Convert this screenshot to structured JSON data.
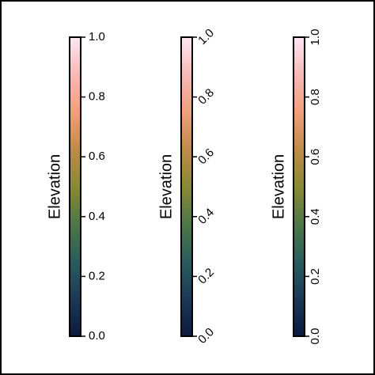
{
  "chart_data": [
    {
      "type": "colorbar",
      "label": "Elevation",
      "ylim": [
        0,
        1
      ],
      "tick_rotation": 0,
      "yticks": [
        {
          "value": 0,
          "label": "0.0"
        },
        {
          "value": 0.2,
          "label": "0.2"
        },
        {
          "value": 0.4,
          "label": "0.4"
        },
        {
          "value": 0.6,
          "label": "0.6"
        },
        {
          "value": 0.8,
          "label": "0.8"
        },
        {
          "value": 1,
          "label": "1.0"
        }
      ],
      "colormap": [
        "#0b1a40",
        "#1b3957",
        "#2a5c5e",
        "#4d7846",
        "#8a8934",
        "#c08b4a",
        "#f19f7c",
        "#f8b9b6",
        "#fde8f6"
      ]
    },
    {
      "type": "colorbar",
      "label": "Elevation",
      "ylim": [
        0,
        1
      ],
      "tick_rotation": 45,
      "yticks": [
        {
          "value": 0,
          "label": "0.0"
        },
        {
          "value": 0.2,
          "label": "0.2"
        },
        {
          "value": 0.4,
          "label": "0.4"
        },
        {
          "value": 0.6,
          "label": "0.6"
        },
        {
          "value": 0.8,
          "label": "0.8"
        },
        {
          "value": 1,
          "label": "1.0"
        }
      ],
      "colormap": [
        "#0b1a40",
        "#1b3957",
        "#2a5c5e",
        "#4d7846",
        "#8a8934",
        "#c08b4a",
        "#f19f7c",
        "#f8b9b6",
        "#fde8f6"
      ]
    },
    {
      "type": "colorbar",
      "label": "Elevation",
      "ylim": [
        0,
        1
      ],
      "tick_rotation": 90,
      "yticks": [
        {
          "value": 0,
          "label": "0.0"
        },
        {
          "value": 0.2,
          "label": "0.2"
        },
        {
          "value": 0.4,
          "label": "0.4"
        },
        {
          "value": 0.6,
          "label": "0.6"
        },
        {
          "value": 0.8,
          "label": "0.8"
        },
        {
          "value": 1,
          "label": "1.0"
        }
      ],
      "colormap": [
        "#0b1a40",
        "#1b3957",
        "#2a5c5e",
        "#4d7846",
        "#8a8934",
        "#c08b4a",
        "#f19f7c",
        "#f8b9b6",
        "#fde8f6"
      ]
    }
  ]
}
